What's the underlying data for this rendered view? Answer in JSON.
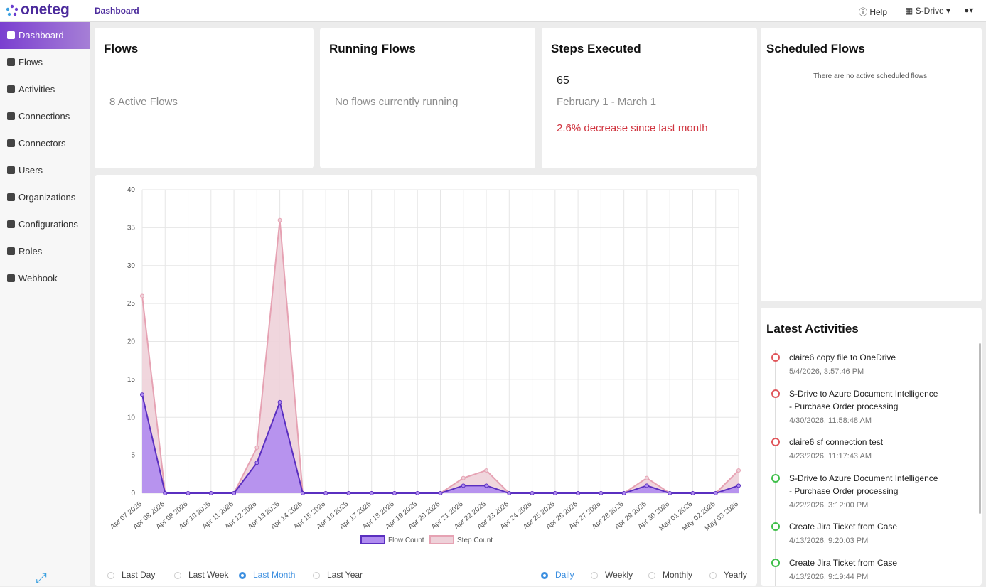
{
  "header": {
    "logo": "oneteg",
    "page": "Dashboard",
    "help": "Help",
    "drive": "S-Drive"
  },
  "nav": [
    {
      "label": "Dashboard",
      "active": true
    },
    {
      "label": "Flows",
      "active": false
    },
    {
      "label": "Activities",
      "active": false
    },
    {
      "label": "Connections",
      "active": false
    },
    {
      "label": "Connectors",
      "active": false
    },
    {
      "label": "Users",
      "active": false
    },
    {
      "label": "Organizations",
      "active": false
    },
    {
      "label": "Configurations",
      "active": false
    },
    {
      "label": "Roles",
      "active": false
    },
    {
      "label": "Webhook",
      "active": false
    }
  ],
  "cards": {
    "flows": {
      "title": "Flows",
      "text": "8 Active Flows"
    },
    "running": {
      "title": "Running Flows",
      "text": "No flows currently running"
    },
    "steps": {
      "title": "Steps Executed",
      "value": 65,
      "period": "February 1 - March 1",
      "change": "2.6% decrease since last month"
    },
    "scheduled": {
      "title": "Scheduled Flows",
      "text": "There are no active scheduled flows."
    }
  },
  "activities": {
    "title": "Latest Activities",
    "items": [
      {
        "name": "claire6 copy file to OneDrive",
        "time": "5/4/2026, 3:57:46 PM",
        "color": "#e0565b"
      },
      {
        "name": "S-Drive to Azure Document Intelligence - Purchase Order processing",
        "time": "4/30/2026, 11:58:48 AM",
        "color": "#e0565b"
      },
      {
        "name": "claire6 sf connection test",
        "time": "4/23/2026, 11:17:43 AM",
        "color": "#e0565b"
      },
      {
        "name": "S-Drive to Azure Document Intelligence - Purchase Order processing",
        "time": "4/22/2026, 3:12:00 PM",
        "color": "#3fbf4a"
      },
      {
        "name": "Create Jira Ticket from Case",
        "time": "4/13/2026, 9:20:03 PM",
        "color": "#3fbf4a"
      },
      {
        "name": "Create Jira Ticket from Case",
        "time": "4/13/2026, 9:19:44 PM",
        "color": "#3fbf4a"
      }
    ]
  },
  "range_options": [
    {
      "label": "Last Day",
      "selected": false
    },
    {
      "label": "Last Week",
      "selected": false
    },
    {
      "label": "Last Month",
      "selected": true
    },
    {
      "label": "Last Year",
      "selected": false
    }
  ],
  "interval_options": [
    {
      "label": "Daily",
      "selected": true
    },
    {
      "label": "Weekly",
      "selected": false
    },
    {
      "label": "Monthly",
      "selected": false
    },
    {
      "label": "Yearly",
      "selected": false
    }
  ],
  "chart_data": {
    "type": "area",
    "categories": [
      "Apr 07 2026",
      "Apr 08 2026",
      "Apr 09 2026",
      "Apr 10 2026",
      "Apr 11 2026",
      "Apr 12 2026",
      "Apr 13 2026",
      "Apr 14 2026",
      "Apr 15 2026",
      "Apr 16 2026",
      "Apr 17 2026",
      "Apr 18 2026",
      "Apr 19 2026",
      "Apr 20 2026",
      "Apr 21 2026",
      "Apr 22 2026",
      "Apr 23 2026",
      "Apr 24 2026",
      "Apr 25 2026",
      "Apr 26 2026",
      "Apr 27 2026",
      "Apr 28 2026",
      "Apr 29 2026",
      "Apr 30 2026",
      "May 01 2026",
      "May 02 2026",
      "May 03 2026"
    ],
    "series": [
      {
        "name": "Flow Count",
        "color": "#5a2fc0",
        "fill": "#b08cf0",
        "values": [
          13,
          0,
          0,
          0,
          0,
          4,
          12,
          0,
          0,
          0,
          0,
          0,
          0,
          0,
          1,
          1,
          0,
          0,
          0,
          0,
          0,
          0,
          1,
          0,
          0,
          0,
          1
        ]
      },
      {
        "name": "Step Count",
        "color": "#e6a2b3",
        "fill": "#eed1d9",
        "values": [
          26,
          0,
          0,
          0,
          0,
          6,
          36,
          0,
          0,
          0,
          0,
          0,
          0,
          0,
          2,
          3,
          0,
          0,
          0,
          0,
          0,
          0,
          2,
          0,
          0,
          0,
          3
        ]
      }
    ],
    "ylim": [
      0,
      40
    ],
    "yticks": [
      0,
      5,
      10,
      15,
      20,
      25,
      30,
      35,
      40
    ],
    "grid": true
  }
}
